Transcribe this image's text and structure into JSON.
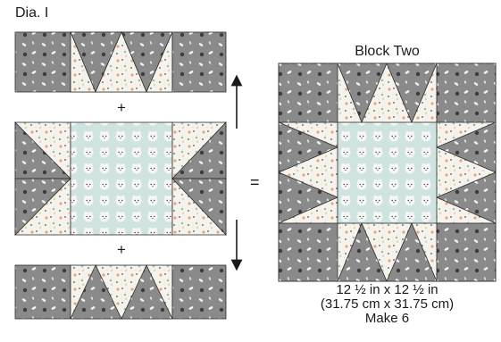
{
  "diagram": {
    "label": "Dia. I",
    "plus_top": "+",
    "plus_bottom": "+",
    "equals": "=",
    "block_title": "Block Two",
    "size_in": "12 ½ in x 12 ½ in",
    "size_cm": "(31.75 cm x 31.75 cm)",
    "quantity": "Make 6"
  },
  "colors": {
    "gray_fabric": "#8a8a8a",
    "light_fabric": "#f3f0ea",
    "mint_fabric": "#cfe3e0",
    "outline": "#2b2b2b"
  }
}
